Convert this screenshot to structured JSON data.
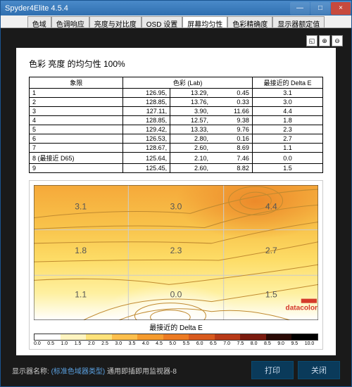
{
  "window": {
    "title": "Spyder4Elite 4.5.4",
    "min_label": "—",
    "max_label": "□",
    "close_label": "×"
  },
  "tabs": [
    {
      "label": "色域"
    },
    {
      "label": "色调响应"
    },
    {
      "label": "亮度与对比度"
    },
    {
      "label": "OSD 设置"
    },
    {
      "label": "屏幕均匀性",
      "active": true
    },
    {
      "label": "色彩精确度"
    },
    {
      "label": "显示器额定值"
    }
  ],
  "tools": {
    "zoom_fit": "◱",
    "zoom_in": "⊕",
    "zoom_out": "⊖"
  },
  "report": {
    "title": "色彩 亮度 的均匀性 100%",
    "columns": {
      "quadrant": "象限",
      "lab": "色彩 (Lab)",
      "delta_e": "最接近的 Delta E"
    },
    "rows": [
      {
        "q": "1",
        "L": "126.95,",
        "a": "13.29,",
        "b": "0.45",
        "de": "3.1"
      },
      {
        "q": "2",
        "L": "128.85,",
        "a": "13.76,",
        "b": "0.33",
        "de": "3.0"
      },
      {
        "q": "3",
        "L": "127.11,",
        "a": "3.90,",
        "b": "11.66",
        "de": "4.4"
      },
      {
        "q": "4",
        "L": "128.85,",
        "a": "12.57,",
        "b": "9.38",
        "de": "1.8"
      },
      {
        "q": "5",
        "L": "129.42,",
        "a": "13.33,",
        "b": "9.76",
        "de": "2.3"
      },
      {
        "q": "6",
        "L": "126.53,",
        "a": "2.80,",
        "b": "0.16",
        "de": "2.7"
      },
      {
        "q": "7",
        "L": "128.67,",
        "a": "2.60,",
        "b": "8.69",
        "de": "1.1"
      },
      {
        "q": "8 (最接近 D65)",
        "L": "125.64,",
        "a": "2.10,",
        "b": "7.46",
        "de": "0.0"
      },
      {
        "q": "9",
        "L": "125.45,",
        "a": "2.60,",
        "b": "8.82",
        "de": "1.5"
      }
    ]
  },
  "chart": {
    "type": "heatmap-contour",
    "title": "最接近的 Delta E",
    "brand": "datacolor",
    "grid_values": [
      [
        "3.1",
        "3.0",
        "4.4"
      ],
      [
        "1.8",
        "2.3",
        "2.7"
      ],
      [
        "1.1",
        "0.0",
        "1.5"
      ]
    ],
    "bg_gradient": {
      "top": "#f5a93a",
      "upper_mid": "#f8c24a",
      "mid": "#fddc66",
      "lower": "#fef0a0",
      "bottom": "#ffffff"
    },
    "contour_color": "#c08a30",
    "grid_line_color": "#cccccc",
    "text_color": "#555555",
    "brand_color": "#d43a2a",
    "legend": {
      "colors": [
        "#ffffff",
        "#fff4c0",
        "#fee27a",
        "#fdbf4c",
        "#f59b2e",
        "#ec7a22",
        "#d85a1e",
        "#b83a18",
        "#7a1a0e",
        "#2a0a05",
        "#000000"
      ],
      "ticks": [
        "0.0",
        "0.5",
        "1.0",
        "1.5",
        "2.0",
        "2.5",
        "3.0",
        "3.5",
        "4.0",
        "4.5",
        "5.0",
        "5.5",
        "6.0",
        "6.5",
        "7.0",
        "7.5",
        "8.0",
        "8.5",
        "9.0",
        "9.5",
        "10.0"
      ]
    }
  },
  "footer": {
    "label_prefix": "显示器名称: ",
    "highlight": "(标准色域器类型)",
    "suffix": " 通用即插即用监视器-8",
    "print": "打印",
    "close": "关闭"
  }
}
